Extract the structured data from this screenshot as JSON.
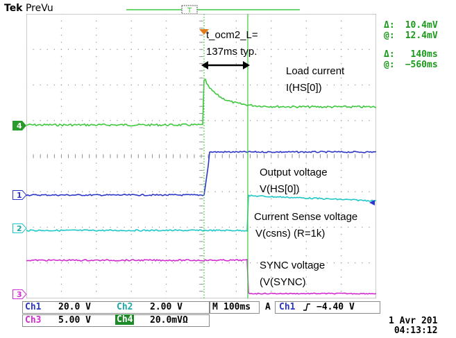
{
  "header": {
    "brand": "Tek",
    "mode": "PreVu",
    "trigger_marker": "T"
  },
  "cursor_readout": {
    "volts_delta_symbol": "Δ:",
    "volts_delta_value": "10.4mV",
    "volts_at_symbol": "@:",
    "volts_at_value": "12.4mV",
    "time_delta_symbol": "Δ:",
    "time_delta_value": "140ms",
    "time_at_symbol": "@:",
    "time_at_value": "−560ms"
  },
  "annotations": {
    "t_ocm_line1": "t_ocm2_L=",
    "t_ocm_line2": "137ms typ.",
    "load_current_line1": "Load current",
    "load_current_line2": "I(HS[0])",
    "output_voltage_line1": "Output voltage",
    "output_voltage_line2": "V(HS[0])",
    "current_sense_line1": "Current Sense voltage",
    "current_sense_line2": "V(csns) (R=1k)",
    "sync_line1": "SYNC voltage",
    "sync_line2": "(V(SYNC)"
  },
  "channel_markers": {
    "ch4": "4",
    "ch1": "1",
    "ch2": "2",
    "ch3": "3"
  },
  "status": {
    "ch1_label": "Ch1",
    "ch1_scale": "20.0 V",
    "ch2_label": "Ch2",
    "ch2_scale": "2.00 V",
    "ch3_label": "Ch3",
    "ch3_scale": "5.00 V",
    "ch4_label": "Ch4",
    "ch4_scale": "20.0mVΩ",
    "timebase_label": "M",
    "timebase_value": "100ms",
    "trigger_mode": "A",
    "trigger_source": "Ch1",
    "trigger_slope_icon": "rising-edge-icon",
    "trigger_level": "−4.40 V",
    "date": "1 Avr 201",
    "time": "04:13:12"
  },
  "colors": {
    "ch1": "#2b35c8",
    "ch2": "#1fc8c8",
    "ch3": "#d22bd2",
    "ch4": "#3ec83e",
    "cursor_text": "#1a9a1a"
  }
}
